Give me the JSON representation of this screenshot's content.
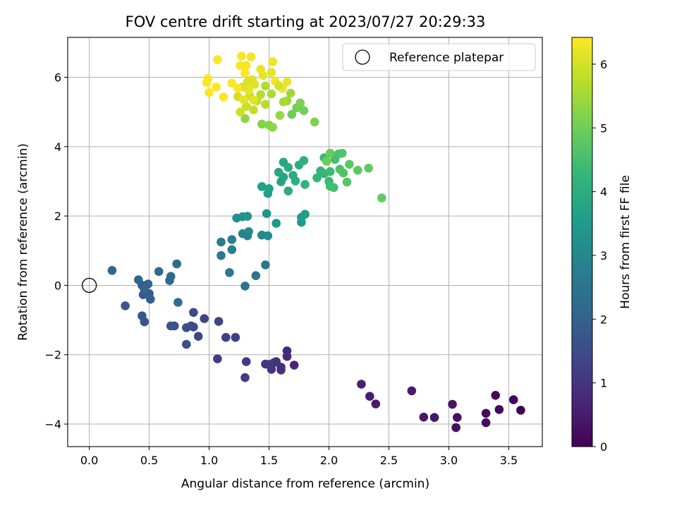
{
  "chart_data": {
    "type": "scatter",
    "title": "FOV centre drift starting at 2023/07/27 20:29:33",
    "xlabel": "Angular distance from reference (arcmin)",
    "ylabel": "Rotation from reference (arcmin)",
    "xlim": [
      -0.18,
      3.78
    ],
    "ylim": [
      -4.65,
      7.15
    ],
    "x_ticks": [
      0.0,
      0.5,
      1.0,
      1.5,
      2.0,
      2.5,
      3.0,
      3.5
    ],
    "x_tick_labels": [
      "0.0",
      "0.5",
      "1.0",
      "1.5",
      "2.0",
      "2.5",
      "3.0",
      "3.5"
    ],
    "y_ticks": [
      -4,
      -2,
      0,
      2,
      4,
      6
    ],
    "y_tick_labels": [
      "−4",
      "−2",
      "0",
      "2",
      "4",
      "6"
    ],
    "grid": true,
    "legend": {
      "placement": "top-right",
      "entries": [
        {
          "label": "Reference platepar",
          "marker": "open-circle"
        }
      ]
    },
    "reference_point": {
      "x": 0.0,
      "y": 0.0
    },
    "colorbar": {
      "label": "Hours from first FF file",
      "colormap": "viridis",
      "range": [
        0,
        6.42
      ],
      "ticks": [
        0,
        1,
        2,
        3,
        4,
        5,
        6
      ],
      "tick_labels": [
        "0",
        "1",
        "2",
        "3",
        "4",
        "5",
        "6"
      ]
    },
    "colormap_stops": [
      "#440154",
      "#482878",
      "#3e4989",
      "#31688e",
      "#26828e",
      "#1f9e89",
      "#35b779",
      "#6ece58",
      "#b5de2b",
      "#fde725"
    ],
    "points": [
      [
        3.6,
        -3.6,
        0.02
      ],
      [
        3.54,
        -3.3,
        0.06
      ],
      [
        3.42,
        -3.58,
        0.1
      ],
      [
        3.39,
        -3.17,
        0.14
      ],
      [
        3.31,
        -3.69,
        0.18
      ],
      [
        3.31,
        -3.96,
        0.22
      ],
      [
        3.06,
        -4.1,
        0.26
      ],
      [
        3.07,
        -3.81,
        0.3
      ],
      [
        3.03,
        -3.43,
        0.34
      ],
      [
        2.88,
        -3.81,
        0.38
      ],
      [
        2.79,
        -3.8,
        0.42
      ],
      [
        2.69,
        -3.04,
        0.46
      ],
      [
        2.39,
        -3.42,
        0.5
      ],
      [
        2.34,
        -3.2,
        0.54
      ],
      [
        2.27,
        -2.85,
        0.58
      ],
      [
        1.71,
        -2.3,
        0.7
      ],
      [
        1.65,
        -1.89,
        0.74
      ],
      [
        1.65,
        -2.05,
        0.78
      ],
      [
        1.6,
        -2.36,
        0.82
      ],
      [
        1.6,
        -2.44,
        0.86
      ],
      [
        1.56,
        -2.2,
        0.9
      ],
      [
        1.54,
        -2.23,
        0.94
      ],
      [
        1.52,
        -2.42,
        0.98
      ],
      [
        1.5,
        -2.28,
        1.02
      ],
      [
        1.47,
        -2.27,
        1.06
      ],
      [
        1.31,
        -2.2,
        1.1
      ],
      [
        1.3,
        -2.66,
        1.14
      ],
      [
        1.07,
        -2.12,
        1.18
      ],
      [
        1.22,
        -1.5,
        1.22
      ],
      [
        1.14,
        -1.5,
        1.26
      ],
      [
        1.08,
        -1.04,
        1.3
      ],
      [
        0.96,
        -0.96,
        1.34
      ],
      [
        0.91,
        -1.47,
        1.38
      ],
      [
        0.87,
        -0.78,
        1.42
      ],
      [
        0.87,
        -1.2,
        1.46
      ],
      [
        0.85,
        -1.17,
        1.5
      ],
      [
        0.81,
        -1.22,
        1.54
      ],
      [
        0.81,
        -1.7,
        1.58
      ],
      [
        0.71,
        -1.17,
        1.62
      ],
      [
        0.68,
        -1.17,
        1.66
      ],
      [
        0.46,
        -1.05,
        1.7
      ],
      [
        0.44,
        -0.88,
        1.74
      ],
      [
        0.3,
        -0.59,
        1.78
      ],
      [
        0.45,
        -0.27,
        1.82
      ],
      [
        0.5,
        -0.24,
        1.86
      ],
      [
        0.51,
        -0.4,
        1.9
      ],
      [
        0.44,
        0.0,
        1.94
      ],
      [
        0.49,
        0.04,
        1.98
      ],
      [
        0.46,
        -0.11,
        2.02
      ],
      [
        0.41,
        0.16,
        2.06
      ],
      [
        0.19,
        0.43,
        2.1
      ],
      [
        0.58,
        0.4,
        2.14
      ],
      [
        0.67,
        0.14,
        2.18
      ],
      [
        0.68,
        0.26,
        2.22
      ],
      [
        0.73,
        0.62,
        2.26
      ],
      [
        0.74,
        -0.49,
        2.3
      ],
      [
        1.3,
        -0.02,
        2.4
      ],
      [
        1.39,
        0.28,
        2.46
      ],
      [
        1.47,
        0.59,
        2.52
      ],
      [
        1.17,
        0.37,
        2.58
      ],
      [
        1.1,
        0.86,
        2.64
      ],
      [
        1.1,
        1.25,
        2.7
      ],
      [
        1.19,
        1.03,
        2.76
      ],
      [
        1.19,
        1.32,
        2.82
      ],
      [
        1.28,
        1.49,
        2.88
      ],
      [
        1.32,
        1.43,
        2.94
      ],
      [
        1.33,
        1.55,
        3.0
      ],
      [
        1.44,
        1.45,
        3.06
      ],
      [
        1.49,
        1.43,
        3.12
      ],
      [
        1.23,
        1.94,
        3.18
      ],
      [
        1.28,
        1.98,
        3.24
      ],
      [
        1.32,
        1.99,
        3.3
      ],
      [
        1.48,
        2.07,
        3.36
      ],
      [
        1.56,
        1.79,
        3.42
      ],
      [
        1.77,
        1.82,
        3.48
      ],
      [
        1.77,
        1.96,
        3.54
      ],
      [
        1.8,
        2.05,
        3.58
      ],
      [
        1.44,
        2.85,
        3.62
      ],
      [
        1.49,
        2.65,
        3.66
      ],
      [
        1.5,
        2.79,
        3.7
      ],
      [
        1.6,
        2.99,
        3.74
      ],
      [
        1.62,
        3.12,
        3.78
      ],
      [
        1.58,
        3.26,
        3.82
      ],
      [
        1.62,
        3.55,
        3.86
      ],
      [
        1.66,
        3.4,
        3.9
      ],
      [
        1.66,
        2.72,
        3.94
      ],
      [
        1.7,
        3.17,
        3.98
      ],
      [
        1.72,
        3.01,
        4.02
      ],
      [
        1.75,
        3.47,
        4.06
      ],
      [
        1.79,
        3.6,
        4.1
      ],
      [
        1.8,
        2.91,
        4.14
      ],
      [
        1.9,
        3.1,
        4.18
      ],
      [
        1.93,
        3.3,
        4.22
      ],
      [
        1.96,
        3.22,
        4.26
      ],
      [
        1.96,
        3.68,
        4.3
      ],
      [
        2.0,
        3.0,
        4.34
      ],
      [
        2.01,
        3.28,
        4.38
      ],
      [
        2.01,
        2.86,
        4.42
      ],
      [
        2.04,
        2.82,
        4.46
      ],
      [
        2.05,
        3.63,
        4.5
      ],
      [
        2.08,
        3.79,
        4.54
      ],
      [
        2.09,
        3.35,
        4.58
      ],
      [
        2.11,
        3.81,
        4.62
      ],
      [
        2.12,
        3.24,
        4.66
      ],
      [
        2.15,
        2.98,
        4.7
      ],
      [
        2.17,
        3.49,
        4.74
      ],
      [
        2.24,
        3.32,
        4.78
      ],
      [
        2.33,
        3.38,
        4.82
      ],
      [
        2.44,
        2.52,
        4.86
      ],
      [
        2.01,
        3.81,
        4.9
      ],
      [
        1.98,
        3.58,
        4.94
      ],
      [
        1.73,
        5.12,
        5.05
      ],
      [
        1.76,
        5.26,
        5.1
      ],
      [
        1.88,
        4.71,
        5.15
      ],
      [
        1.44,
        4.65,
        5.2
      ],
      [
        1.5,
        4.62,
        5.25
      ],
      [
        1.53,
        4.56,
        5.3
      ],
      [
        1.3,
        4.81,
        5.35
      ],
      [
        1.59,
        4.9,
        5.4
      ],
      [
        1.65,
        5.32,
        5.45
      ],
      [
        1.68,
        5.54,
        5.5
      ],
      [
        1.62,
        5.29,
        5.55
      ],
      [
        1.52,
        5.52,
        5.6
      ],
      [
        1.47,
        5.75,
        5.65
      ],
      [
        1.43,
        5.5,
        5.7
      ],
      [
        1.47,
        5.22,
        5.74
      ],
      [
        1.4,
        5.32,
        5.78
      ],
      [
        1.37,
        5.06,
        5.82
      ],
      [
        1.34,
        5.46,
        5.86
      ],
      [
        1.31,
        5.16,
        5.9
      ],
      [
        1.26,
        5.0,
        5.94
      ],
      [
        1.24,
        5.44,
        5.98
      ],
      [
        1.28,
        5.72,
        6.02
      ],
      [
        1.32,
        5.87,
        6.06
      ],
      [
        1.36,
        5.93,
        6.1
      ],
      [
        1.38,
        5.79,
        6.14
      ],
      [
        1.45,
        6.05,
        6.18
      ],
      [
        1.52,
        6.14,
        6.22
      ],
      [
        1.53,
        6.45,
        6.26
      ],
      [
        1.35,
        6.59,
        6.3
      ],
      [
        1.27,
        6.61,
        6.34
      ],
      [
        1.26,
        6.34,
        6.38
      ],
      [
        1.12,
        5.43,
        6.4
      ],
      [
        1.06,
        5.72,
        6.42
      ],
      [
        1.0,
        5.56,
        6.42
      ],
      [
        0.98,
        5.85,
        6.41
      ],
      [
        0.99,
        5.96,
        6.4
      ],
      [
        1.07,
        6.51,
        6.4
      ],
      [
        1.19,
        5.83,
        6.39
      ],
      [
        1.24,
        5.68,
        6.38
      ],
      [
        1.3,
        6.12,
        6.37
      ],
      [
        1.55,
        5.89,
        6.3
      ],
      [
        1.61,
        5.68,
        6.28
      ],
      [
        1.65,
        5.87,
        6.25
      ],
      [
        1.43,
        6.23,
        6.22
      ],
      [
        1.33,
        5.62,
        6.2
      ],
      [
        1.29,
        5.35,
        6.18
      ],
      [
        1.37,
        5.35,
        6.16
      ],
      [
        1.31,
        6.34,
        6.36
      ],
      [
        1.58,
        5.76,
        6.0
      ],
      [
        1.69,
        4.93,
        5.0
      ],
      [
        1.79,
        5.04,
        5.0
      ]
    ]
  }
}
